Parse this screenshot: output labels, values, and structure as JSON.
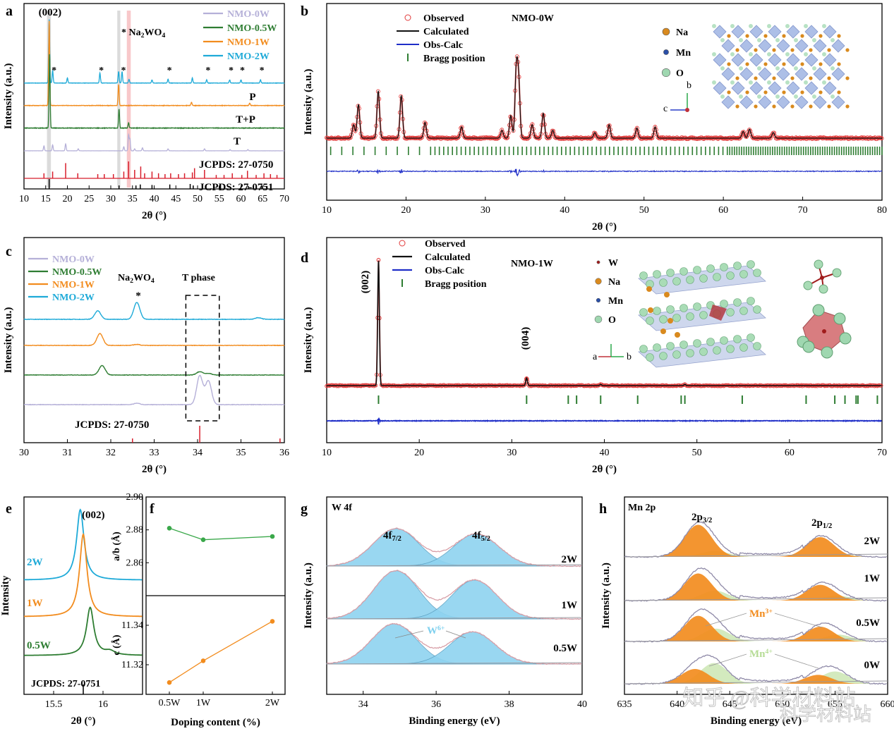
{
  "panel_labels": [
    "a",
    "b",
    "c",
    "d",
    "e",
    "f",
    "g",
    "h"
  ],
  "colors": {
    "w0": "#b5b0d8",
    "w05": "#2e7d32",
    "w1": "#f28c1e",
    "w2": "#1eaad8",
    "red": "#d81e2c",
    "obs": "#e23a3a",
    "calc": "#111111",
    "diff": "#1f2ec8",
    "bragg": "#2e7d32",
    "green": "#3aa84a",
    "orange": "#f28c1e",
    "fill_blue": "#8fd3f0",
    "fill_orange": "#f28c1e",
    "fill_green": "#cfe8b8",
    "envelope": "#d8a0a8"
  },
  "watermark": {
    "line1": "知乎 @科学材料站",
    "line2": "科学材料站"
  },
  "chart_data": [
    {
      "id": "a",
      "type": "line",
      "title": "",
      "xlabel": "2θ (°)",
      "ylabel": "Intensity (a.u.)",
      "xlim": [
        10,
        70
      ],
      "xticks": [
        10,
        15,
        20,
        25,
        30,
        35,
        40,
        45,
        50,
        55,
        60,
        65,
        70
      ],
      "legend": [
        "NMO-0W",
        "NMO-0.5W",
        "NMO-1W",
        "NMO-2W"
      ],
      "annotations": {
        "peak_002": "(002)",
        "star_legend": "* Na2WO4",
        "P": "P",
        "TP": "T+P",
        "T": "T",
        "ref1": "JCPDS: 27-0750",
        "ref2": "JCPDS: 27-0751"
      },
      "series": [
        {
          "name": "NMO-2W",
          "offset": 4,
          "peaks": [
            [
              15.8,
              1.0
            ],
            [
              16.6,
              0.2
            ],
            [
              20.0,
              0.08
            ],
            [
              27.5,
              0.16
            ],
            [
              31.8,
              0.18
            ],
            [
              32.6,
              0.18
            ],
            [
              34.2,
              0.06
            ],
            [
              39.5,
              0.05
            ],
            [
              43.2,
              0.06
            ],
            [
              48.8,
              0.08
            ],
            [
              52.1,
              0.05
            ],
            [
              57.4,
              0.05
            ],
            [
              60.0,
              0.05
            ],
            [
              64.5,
              0.05
            ]
          ]
        },
        {
          "name": "NMO-1W",
          "offset": 3,
          "peaks": [
            [
              15.8,
              1.0
            ],
            [
              31.8,
              0.25
            ],
            [
              48.6,
              0.04
            ],
            [
              62.0,
              0.03
            ]
          ]
        },
        {
          "name": "NMO-0.5W",
          "offset": 2,
          "peaks": [
            [
              15.9,
              0.7
            ],
            [
              31.9,
              0.18
            ],
            [
              34.1,
              0.05
            ]
          ]
        },
        {
          "name": "NMO-0W",
          "offset": 1,
          "peaks": [
            [
              14.6,
              0.25
            ],
            [
              16.6,
              0.3
            ],
            [
              19.6,
              0.35
            ],
            [
              22.5,
              0.1
            ],
            [
              33.0,
              0.2
            ],
            [
              34.1,
              0.8
            ],
            [
              34.4,
              0.6
            ],
            [
              35.5,
              0.1
            ],
            [
              37.3,
              0.15
            ],
            [
              43.2,
              0.1
            ],
            [
              51.6,
              0.1
            ],
            [
              57.5,
              0.06
            ],
            [
              61.6,
              0.06
            ]
          ]
        }
      ],
      "star_positions": [
        16.6,
        27.5,
        32.6,
        43.2,
        52.1,
        57.4,
        60.0,
        64.5
      ],
      "ref_0750": [
        [
          14.6,
          0.3
        ],
        [
          16.6,
          0.4
        ],
        [
          19.6,
          0.9
        ],
        [
          22.4,
          0.3
        ],
        [
          27.0,
          0.25
        ],
        [
          28.5,
          0.25
        ],
        [
          30.6,
          0.25
        ],
        [
          33.0,
          0.4
        ],
        [
          34.1,
          1.0
        ],
        [
          35.5,
          0.5
        ],
        [
          36.9,
          0.7
        ],
        [
          37.8,
          0.3
        ],
        [
          39.5,
          0.4
        ],
        [
          41.0,
          0.3
        ],
        [
          42.5,
          0.25
        ],
        [
          43.8,
          0.3
        ],
        [
          45.6,
          0.25
        ],
        [
          47.0,
          0.3
        ],
        [
          48.8,
          0.35
        ],
        [
          49.3,
          0.6
        ],
        [
          51.6,
          0.5
        ],
        [
          54.3,
          0.2
        ],
        [
          56.1,
          0.2
        ],
        [
          58.0,
          0.3
        ],
        [
          60.2,
          0.2
        ],
        [
          61.5,
          0.45
        ],
        [
          63.5,
          0.2
        ],
        [
          65.3,
          0.3
        ],
        [
          66.8,
          0.25
        ],
        [
          68.3,
          0.2
        ]
      ],
      "ref_0751": [
        [
          15.8,
          1.0
        ],
        [
          31.9,
          0.35
        ],
        [
          35.8,
          0.35
        ],
        [
          36.8,
          0.45
        ],
        [
          39.5,
          0.4
        ],
        [
          43.6,
          0.45
        ],
        [
          48.3,
          0.5
        ],
        [
          49.0,
          0.35
        ],
        [
          55.0,
          0.25
        ],
        [
          61.7,
          0.3
        ],
        [
          64.8,
          0.3
        ],
        [
          66.0,
          0.3
        ]
      ]
    },
    {
      "id": "b",
      "type": "line",
      "title": "NMO-0W",
      "xlabel": "2θ (°)",
      "ylabel": "Intensity (a.u.)",
      "xlim": [
        10,
        80
      ],
      "xticks": [
        10,
        20,
        30,
        40,
        50,
        60,
        70,
        80
      ],
      "legend": [
        "Observed",
        "Calculated",
        "Obs-Calc",
        "Bragg position"
      ],
      "atoms": [
        "Na",
        "Mn",
        "O"
      ],
      "peaks": [
        [
          13.4,
          0.12
        ],
        [
          14.0,
          0.3
        ],
        [
          16.5,
          0.42
        ],
        [
          19.4,
          0.38
        ],
        [
          22.4,
          0.14
        ],
        [
          27.0,
          0.1
        ],
        [
          32.1,
          0.07
        ],
        [
          33.2,
          0.2
        ],
        [
          33.9,
          0.6
        ],
        [
          34.2,
          0.5
        ],
        [
          35.9,
          0.12
        ],
        [
          37.3,
          0.22
        ],
        [
          38.5,
          0.07
        ],
        [
          43.8,
          0.05
        ],
        [
          45.6,
          0.12
        ],
        [
          49.1,
          0.09
        ],
        [
          51.4,
          0.1
        ],
        [
          62.5,
          0.06
        ],
        [
          63.3,
          0.08
        ],
        [
          66.3,
          0.05
        ]
      ]
    },
    {
      "id": "c",
      "type": "line",
      "title": "",
      "xlabel": "2θ (°)",
      "ylabel": "Intensity (a.u.)",
      "xlim": [
        30,
        36
      ],
      "xticks": [
        30,
        31,
        32,
        33,
        34,
        35,
        36
      ],
      "legend": [
        "NMO-0W",
        "NMO-0.5W",
        "NMO-1W",
        "NMO-2W"
      ],
      "annotations": {
        "na2wo4": "Na2WO4",
        "star": "*",
        "tphase": "T phase",
        "ref": "JCPDS: 27-0750"
      },
      "series": [
        {
          "name": "NMO-2W",
          "offset": 4,
          "peaks": [
            [
              31.7,
              0.25
            ],
            [
              32.6,
              0.5
            ],
            [
              35.4,
              0.05
            ]
          ]
        },
        {
          "name": "NMO-1W",
          "offset": 3,
          "peaks": [
            [
              31.75,
              0.35
            ],
            [
              32.6,
              0.03
            ]
          ]
        },
        {
          "name": "NMO-0.5W",
          "offset": 2,
          "peaks": [
            [
              31.8,
              0.28
            ],
            [
              34.05,
              0.1
            ],
            [
              34.25,
              0.05
            ]
          ]
        },
        {
          "name": "NMO-0W",
          "offset": 1,
          "peaks": [
            [
              32.6,
              0.04
            ],
            [
              34.05,
              0.85
            ],
            [
              34.25,
              0.7
            ]
          ]
        }
      ],
      "ref_0750": [
        [
          32.5,
          0.25
        ],
        [
          34.05,
          1.0
        ],
        [
          35.9,
          0.25
        ]
      ]
    },
    {
      "id": "d",
      "type": "line",
      "title": "NMO-1W",
      "xlabel": "2θ (°)",
      "ylabel": "Intensity (a.u.)",
      "xlim": [
        10,
        70
      ],
      "xticks": [
        10,
        20,
        30,
        40,
        50,
        60,
        70
      ],
      "legend": [
        "Observed",
        "Calculated",
        "Obs-Calc",
        "Bragg position"
      ],
      "atoms": [
        "W",
        "Na",
        "Mn",
        "O"
      ],
      "annotations": {
        "p002": "(002)",
        "p004": "(004)"
      },
      "peaks": [
        [
          15.6,
          1.0
        ],
        [
          31.6,
          0.06
        ],
        [
          39.6,
          0.01
        ],
        [
          48.7,
          0.01
        ]
      ],
      "bragg": [
        15.6,
        31.6,
        36.1,
        37.0,
        39.6,
        43.6,
        48.3,
        48.7,
        54.9,
        61.8,
        64.9,
        66.0,
        67.2,
        67.4,
        69.5
      ]
    },
    {
      "id": "e",
      "type": "line",
      "title": "",
      "xlabel": "2θ (°)",
      "ylabel": "Intensity",
      "xlim": [
        15.2,
        16.4
      ],
      "xticks": [
        15.5,
        16.0
      ],
      "annotations": {
        "peak": "(002)",
        "ref": "JCPDS: 27-0751"
      },
      "series": [
        {
          "name": "2W",
          "center": 15.77,
          "offset": 2
        },
        {
          "name": "1W",
          "center": 15.8,
          "offset": 1
        },
        {
          "name": "0.5W",
          "center": 15.87,
          "offset": 0
        }
      ]
    },
    {
      "id": "f",
      "type": "line",
      "title": "",
      "xlabel": "Doping content (%)",
      "categories": [
        "0.5W",
        "1W",
        "2W"
      ],
      "series": [
        {
          "name": "a/b (Å)",
          "values": [
            2.881,
            2.874,
            2.876
          ],
          "ylim": [
            2.84,
            2.9
          ],
          "yticks": [
            2.86,
            2.88,
            2.9
          ]
        },
        {
          "name": "c (Å)",
          "values": [
            11.311,
            11.322,
            11.342
          ],
          "ylim": [
            11.305,
            11.355
          ],
          "yticks": [
            11.32,
            11.34
          ]
        }
      ]
    },
    {
      "id": "g",
      "type": "area",
      "title": "W 4f",
      "xlabel": "Binding energy (eV)",
      "ylabel": "Intensity (a.u.)",
      "xlim": [
        33,
        40
      ],
      "xticks": [
        34,
        36,
        38,
        40
      ],
      "annotations": {
        "p1": "4f7/2",
        "p2": "4f5/2",
        "w6": "W6+"
      },
      "samples": [
        {
          "name": "2W",
          "peaks": [
            [
              34.9,
              0.56
            ],
            [
              37.1,
              0.48
            ]
          ]
        },
        {
          "name": "1W",
          "peaks": [
            [
              34.9,
              0.72
            ],
            [
              37.05,
              0.58
            ]
          ]
        },
        {
          "name": "0.5W",
          "peaks": [
            [
              34.85,
              0.6
            ],
            [
              37.0,
              0.48
            ]
          ]
        }
      ]
    },
    {
      "id": "h",
      "type": "area",
      "title": "Mn 2p",
      "xlabel": "Binding energy (eV)",
      "ylabel": "Intensity (a.u.)",
      "xlim": [
        635,
        660
      ],
      "xticks": [
        635,
        640,
        645,
        650,
        655,
        660
      ],
      "annotations": {
        "p1": "2p3/2",
        "p2": "2p1/2",
        "mn3": "Mn3+",
        "mn4": "Mn4+"
      },
      "samples": [
        {
          "name": "2W",
          "mn3": [
            [
              642.0,
              0.65
            ],
            [
              653.6,
              0.4
            ]
          ],
          "mn4": [
            [
              643.6,
              0.12
            ],
            [
              655.2,
              0.06
            ]
          ]
        },
        {
          "name": "1W",
          "mn3": [
            [
              642.0,
              0.55
            ],
            [
              653.6,
              0.32
            ]
          ],
          "mn4": [
            [
              643.6,
              0.2
            ],
            [
              655.2,
              0.1
            ]
          ]
        },
        {
          "name": "0.5W",
          "mn3": [
            [
              642.0,
              0.52
            ],
            [
              653.6,
              0.3
            ]
          ],
          "mn4": [
            [
              643.7,
              0.26
            ],
            [
              655.3,
              0.14
            ]
          ]
        },
        {
          "name": "0W",
          "mn3": [
            [
              641.7,
              0.3
            ],
            [
              653.4,
              0.18
            ]
          ],
          "mn4": [
            [
              643.5,
              0.42
            ],
            [
              655.0,
              0.25
            ]
          ]
        }
      ]
    }
  ]
}
